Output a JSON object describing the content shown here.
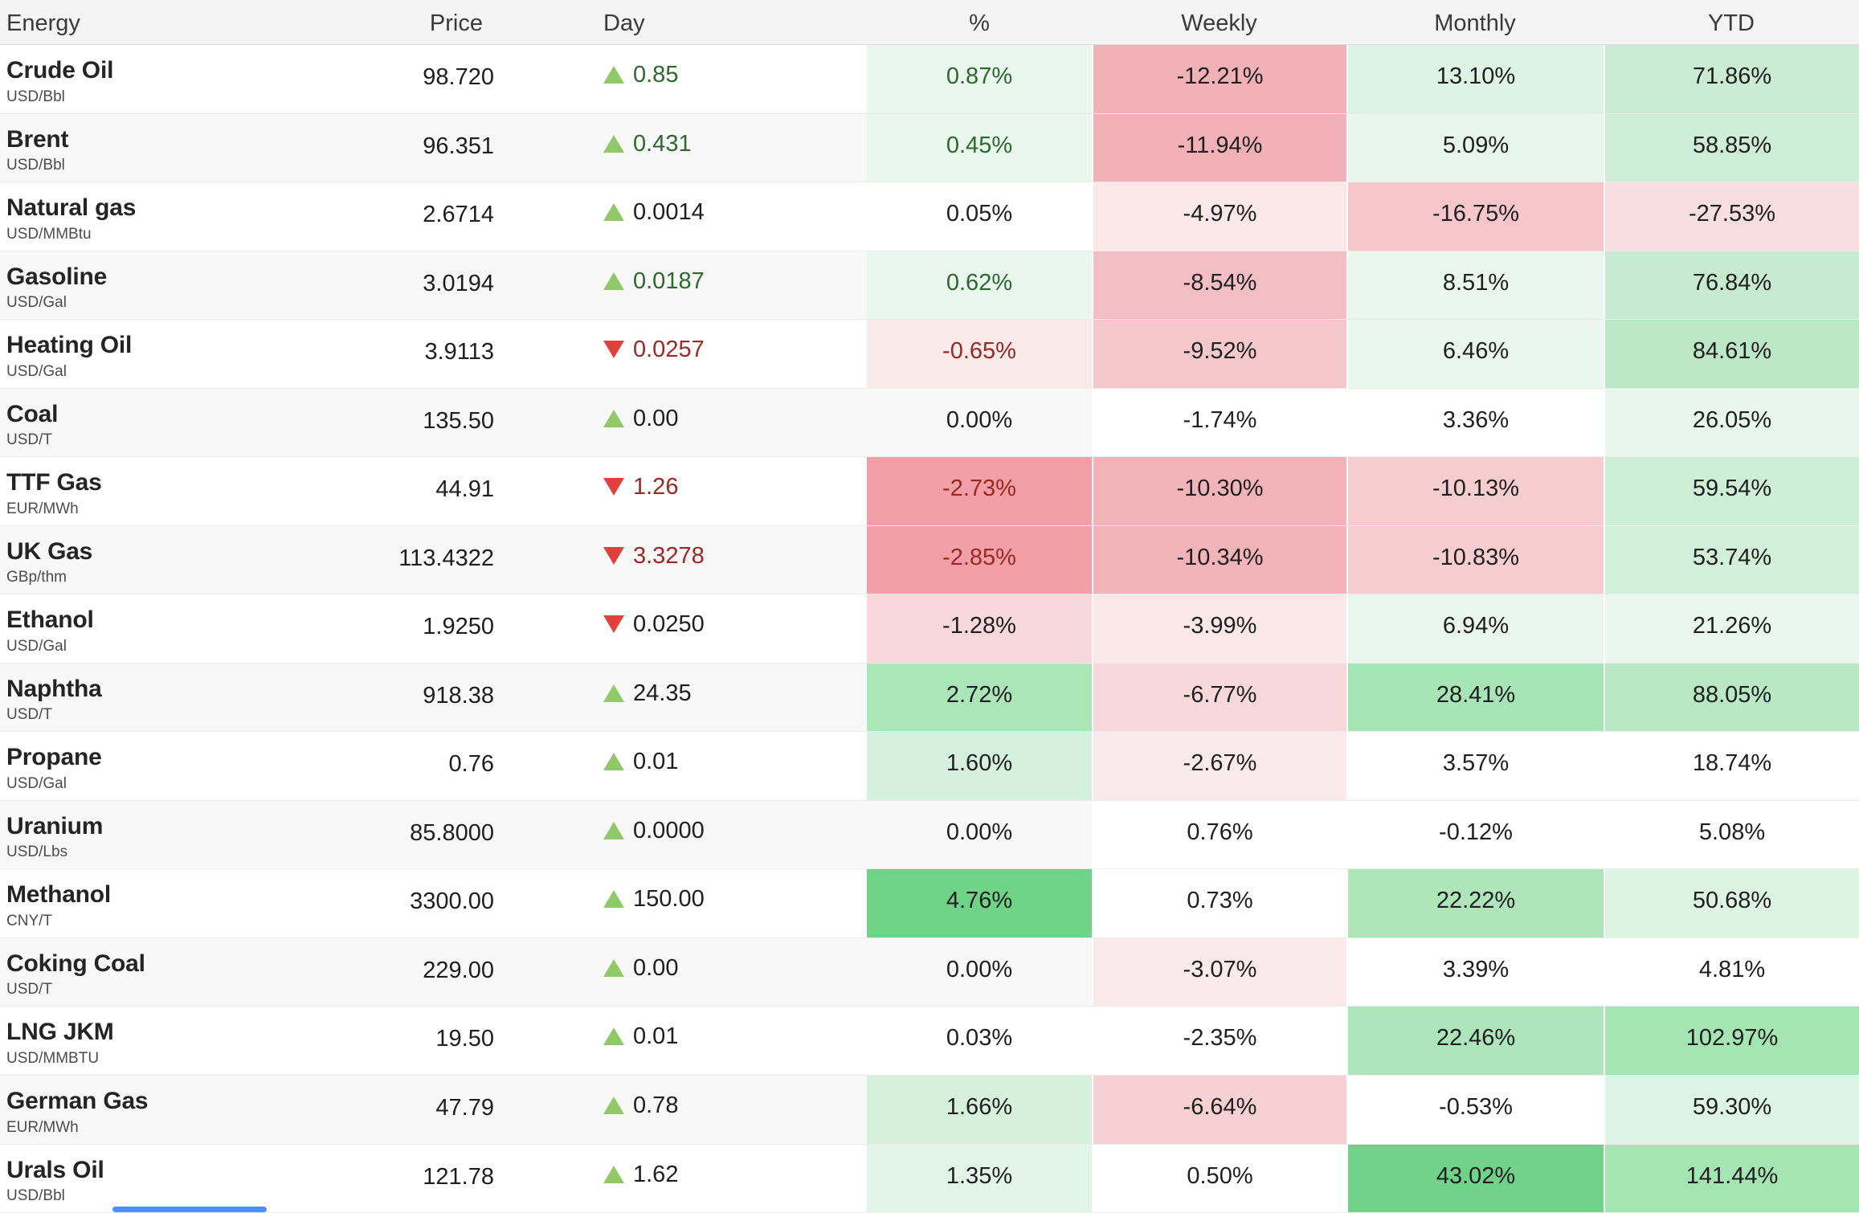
{
  "table": {
    "columns": [
      {
        "label": "Energy"
      },
      {
        "label": "Price"
      },
      {
        "label": "Day"
      },
      {
        "label": "%"
      },
      {
        "label": "Weekly"
      },
      {
        "label": "Monthly"
      },
      {
        "label": "YTD"
      }
    ],
    "rows": [
      {
        "name": "Crude Oil",
        "unit": "USD/Bbl",
        "price": "98.720",
        "day": {
          "dir": "up",
          "value": "0.85",
          "color": "green"
        },
        "pct": {
          "value": "0.87%",
          "bg": "#e9f7ee",
          "text": "green"
        },
        "weekly": {
          "value": "-12.21%",
          "bg": "#f2b1b6"
        },
        "monthly": {
          "value": "13.10%",
          "bg": "#ddf3e3"
        },
        "ytd": {
          "value": "71.86%",
          "bg": "#c9ecd3"
        }
      },
      {
        "name": "Brent",
        "unit": "USD/Bbl",
        "price": "96.351",
        "day": {
          "dir": "up",
          "value": "0.431",
          "color": "green"
        },
        "pct": {
          "value": "0.45%",
          "bg": "#e9f7ee",
          "text": "green"
        },
        "weekly": {
          "value": "-11.94%",
          "bg": "#f2b1b6"
        },
        "monthly": {
          "value": "5.09%",
          "bg": "#e6f6ec"
        },
        "ytd": {
          "value": "58.85%",
          "bg": "#cfeed7"
        }
      },
      {
        "name": "Natural gas",
        "unit": "USD/MMBtu",
        "price": "2.6714",
        "day": {
          "dir": "up",
          "value": "0.0014",
          "color": "black"
        },
        "pct": {
          "value": "0.05%",
          "bg": null,
          "text": "black"
        },
        "weekly": {
          "value": "-4.97%",
          "bg": "#fbe9ea"
        },
        "monthly": {
          "value": "-16.75%",
          "bg": "#f6c6ca"
        },
        "ytd": {
          "value": "-27.53%",
          "bg": "#f8dee0"
        }
      },
      {
        "name": "Gasoline",
        "unit": "USD/Gal",
        "price": "3.0194",
        "day": {
          "dir": "up",
          "value": "0.0187",
          "color": "green"
        },
        "pct": {
          "value": "0.62%",
          "bg": "#e9f7ee",
          "text": "green"
        },
        "weekly": {
          "value": "-8.54%",
          "bg": "#f4bfc4"
        },
        "monthly": {
          "value": "8.51%",
          "bg": "#eaf7ef"
        },
        "ytd": {
          "value": "76.84%",
          "bg": "#c6ebd0"
        }
      },
      {
        "name": "Heating Oil",
        "unit": "USD/Gal",
        "price": "3.9113",
        "day": {
          "dir": "down",
          "value": "0.0257",
          "color": "red"
        },
        "pct": {
          "value": "-0.65%",
          "bg": "#faeaea",
          "text": "red"
        },
        "weekly": {
          "value": "-9.52%",
          "bg": "#f5c8cb"
        },
        "monthly": {
          "value": "6.46%",
          "bg": "#eaf7ef"
        },
        "ytd": {
          "value": "84.61%",
          "bg": "#bde8c8"
        }
      },
      {
        "name": "Coal",
        "unit": "USD/T",
        "price": "135.50",
        "day": {
          "dir": "up",
          "value": "0.00",
          "color": "black"
        },
        "pct": {
          "value": "0.00%",
          "bg": null,
          "text": "black"
        },
        "weekly": {
          "value": "-1.74%",
          "bg": "#ffffff"
        },
        "monthly": {
          "value": "3.36%",
          "bg": "#ffffff"
        },
        "ytd": {
          "value": "26.05%",
          "bg": "#e8f7ed"
        }
      },
      {
        "name": "TTF Gas",
        "unit": "EUR/MWh",
        "price": "44.91",
        "day": {
          "dir": "down",
          "value": "1.26",
          "color": "red"
        },
        "pct": {
          "value": "-2.73%",
          "bg": "#f0a0a6",
          "text": "red"
        },
        "weekly": {
          "value": "-10.30%",
          "bg": "#f3b4b9"
        },
        "monthly": {
          "value": "-10.13%",
          "bg": "#f7cdd0"
        },
        "ytd": {
          "value": "59.54%",
          "bg": "#cfeed6"
        }
      },
      {
        "name": "UK Gas",
        "unit": "GBp/thm",
        "price": "113.4322",
        "day": {
          "dir": "down",
          "value": "3.3278",
          "color": "red"
        },
        "pct": {
          "value": "-2.85%",
          "bg": "#f0a0a6",
          "text": "red"
        },
        "weekly": {
          "value": "-10.34%",
          "bg": "#f3b4b9"
        },
        "monthly": {
          "value": "-10.83%",
          "bg": "#f7cdd0"
        },
        "ytd": {
          "value": "53.74%",
          "bg": "#d2efd9"
        }
      },
      {
        "name": "Ethanol",
        "unit": "USD/Gal",
        "price": "1.9250",
        "day": {
          "dir": "down",
          "value": "0.0250",
          "color": "black"
        },
        "pct": {
          "value": "-1.28%",
          "bg": "#f8d8da",
          "text": "black"
        },
        "weekly": {
          "value": "-3.99%",
          "bg": "#fbe9ea"
        },
        "monthly": {
          "value": "6.94%",
          "bg": "#e9f7ee"
        },
        "ytd": {
          "value": "21.26%",
          "bg": "#e9f7ee"
        }
      },
      {
        "name": "Naphtha",
        "unit": "USD/T",
        "price": "918.38",
        "day": {
          "dir": "up",
          "value": "24.35",
          "color": "black"
        },
        "pct": {
          "value": "2.72%",
          "bg": "#abe6b8",
          "text": "black"
        },
        "weekly": {
          "value": "-6.77%",
          "bg": "#f8d8da"
        },
        "monthly": {
          "value": "28.41%",
          "bg": "#a8e5b6"
        },
        "ytd": {
          "value": "88.05%",
          "bg": "#b9e8c4"
        }
      },
      {
        "name": "Propane",
        "unit": "USD/Gal",
        "price": "0.76",
        "day": {
          "dir": "up",
          "value": "0.01",
          "color": "black"
        },
        "pct": {
          "value": "1.60%",
          "bg": "#d5f1dd",
          "text": "black"
        },
        "weekly": {
          "value": "-2.67%",
          "bg": "#fbeaeb"
        },
        "monthly": {
          "value": "3.57%",
          "bg": "#ffffff"
        },
        "ytd": {
          "value": "18.74%",
          "bg": "#ffffff"
        }
      },
      {
        "name": "Uranium",
        "unit": "USD/Lbs",
        "price": "85.8000",
        "day": {
          "dir": "up",
          "value": "0.0000",
          "color": "black"
        },
        "pct": {
          "value": "0.00%",
          "bg": null,
          "text": "black"
        },
        "weekly": {
          "value": "0.76%",
          "bg": "#ffffff"
        },
        "monthly": {
          "value": "-0.12%",
          "bg": "#ffffff"
        },
        "ytd": {
          "value": "5.08%",
          "bg": "#ffffff"
        }
      },
      {
        "name": "Methanol",
        "unit": "CNY/T",
        "price": "3300.00",
        "day": {
          "dir": "up",
          "value": "150.00",
          "color": "black"
        },
        "pct": {
          "value": "4.76%",
          "bg": "#6fd388",
          "text": "black"
        },
        "weekly": {
          "value": "0.73%",
          "bg": "#ffffff"
        },
        "monthly": {
          "value": "22.22%",
          "bg": "#aee6ba"
        },
        "ytd": {
          "value": "50.68%",
          "bg": "#def4e3"
        }
      },
      {
        "name": "Coking Coal",
        "unit": "USD/T",
        "price": "229.00",
        "day": {
          "dir": "up",
          "value": "0.00",
          "color": "black"
        },
        "pct": {
          "value": "0.00%",
          "bg": null,
          "text": "black"
        },
        "weekly": {
          "value": "-3.07%",
          "bg": "#fbeaec"
        },
        "monthly": {
          "value": "3.39%",
          "bg": "#ffffff"
        },
        "ytd": {
          "value": "4.81%",
          "bg": "#ffffff"
        }
      },
      {
        "name": "LNG JKM",
        "unit": "USD/MMBTU",
        "price": "19.50",
        "day": {
          "dir": "up",
          "value": "0.01",
          "color": "black"
        },
        "pct": {
          "value": "0.03%",
          "bg": null,
          "text": "black"
        },
        "weekly": {
          "value": "-2.35%",
          "bg": "#ffffff"
        },
        "monthly": {
          "value": "22.46%",
          "bg": "#aee6bb"
        },
        "ytd": {
          "value": "102.97%",
          "bg": "#a5e4b3"
        }
      },
      {
        "name": "German Gas",
        "unit": "EUR/MWh",
        "price": "47.79",
        "day": {
          "dir": "up",
          "value": "0.78",
          "color": "black"
        },
        "pct": {
          "value": "1.66%",
          "bg": "#d5f1dc",
          "text": "black"
        },
        "weekly": {
          "value": "-6.64%",
          "bg": "#f7d0d3"
        },
        "monthly": {
          "value": "-0.53%",
          "bg": "#ffffff"
        },
        "ytd": {
          "value": "59.30%",
          "bg": "#def4e4"
        }
      },
      {
        "name": "Urals Oil",
        "unit": "USD/Bbl",
        "price": "121.78",
        "day": {
          "dir": "up",
          "value": "1.62",
          "color": "black"
        },
        "pct": {
          "value": "1.35%",
          "bg": "#e3f5e9",
          "text": "black"
        },
        "weekly": {
          "value": "0.50%",
          "bg": "#ffffff"
        },
        "monthly": {
          "value": "43.02%",
          "bg": "#70d389"
        },
        "ytd": {
          "value": "141.44%",
          "bg": "#a5e4b3"
        }
      }
    ]
  },
  "colors": {
    "positive_text": "#2d692d",
    "negative_text": "#9c2823",
    "neutral_text": "#1f1f1f",
    "up_arrow": "#92c968",
    "down_arrow": "#e0413d",
    "scrollbar_thumb": "#4a90f6"
  }
}
